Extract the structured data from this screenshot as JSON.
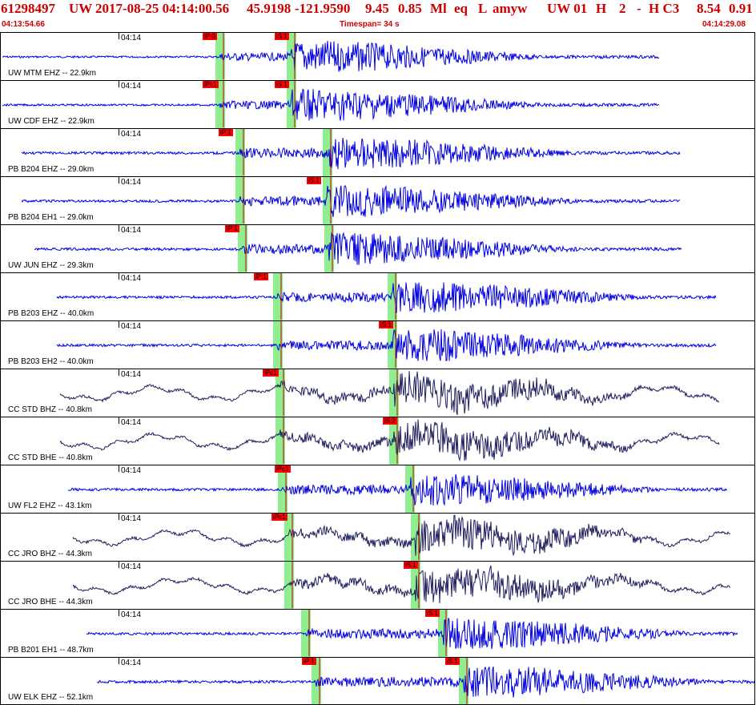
{
  "header": {
    "event_id": "61298497",
    "network": "UW",
    "datetime": "2017-08-25 04:14:00.56",
    "latitude": "45.9198",
    "longitude": "-121.9590",
    "depth": "9.45",
    "magnitude": "0.85",
    "mag_type": "Ml",
    "event_type": "eq",
    "review": "L",
    "analyst": "amyw",
    "origin_source": "UW 01",
    "quality": "H",
    "rank": "2",
    "dash": "-",
    "solution": "H C3",
    "rms_a": "8.54",
    "rms_b": "0.91",
    "start_time": "04:13:54.66",
    "timespan": "Timespan=  34 s",
    "end_time": "04:14:29.08"
  },
  "colors": {
    "header_text": "#cc0000",
    "trace_blue": "#0000e0",
    "trace_navy": "#202060",
    "pick_flag": "#ff0000",
    "pick_window": "#90ee90",
    "pick_line": "#cc0000"
  },
  "traces": [
    {
      "label": "UW MTM EHZ -- 22.9km",
      "time": "04:14",
      "color": "blue",
      "p_pick": "iP:0",
      "s_pick": "iS:1"
    },
    {
      "label": "UW CDF EHZ -- 22.9km",
      "time": "04:14",
      "color": "blue",
      "p_pick": "iPc1",
      "s_pick": "iS:1"
    },
    {
      "label": "PB B204 EHZ -- 29.0km",
      "time": "04:14",
      "color": "blue",
      "p_pick": "iP:1",
      "s_pick": ""
    },
    {
      "label": "PB B204 EH1 -- 29.0km",
      "time": "04:14",
      "color": "blue",
      "p_pick": "",
      "s_pick": "iS:1"
    },
    {
      "label": "UW JUN EHZ -- 29.3km",
      "time": "04:14",
      "color": "blue",
      "p_pick": "iP:1",
      "s_pick": ""
    },
    {
      "label": "PB B203 EHZ -- 40.0km",
      "time": "04:14",
      "color": "blue",
      "p_pick": "iP:1",
      "s_pick": ""
    },
    {
      "label": "PB B203 EH2 -- 40.0km",
      "time": "04:14",
      "color": "blue",
      "p_pick": "",
      "s_pick": "iS:1"
    },
    {
      "label": "CC STD BHZ -- 40.8km",
      "time": "04:14",
      "color": "navy",
      "p_pick": "iPc1",
      "s_pick": ""
    },
    {
      "label": "CC STD BHE -- 40.8km",
      "time": "04:14",
      "color": "navy",
      "p_pick": "",
      "s_pick": "iS:2"
    },
    {
      "label": "UW FL2 EHZ -- 43.1km",
      "time": "04:14",
      "color": "blue",
      "p_pick": "iPc1",
      "s_pick": ""
    },
    {
      "label": "CC JRO BHZ -- 44.3km",
      "time": "04:14",
      "color": "navy",
      "p_pick": "iPc1",
      "s_pick": ""
    },
    {
      "label": "CC JRO BHE -- 44.3km",
      "time": "04:14",
      "color": "navy",
      "p_pick": "",
      "s_pick": "iS:1"
    },
    {
      "label": "PB B201 EH1 -- 48.7km",
      "time": "04:14",
      "color": "blue",
      "p_pick": "",
      "s_pick": "iS:1"
    },
    {
      "label": "UW ELK EHZ -- 52.1km",
      "time": "04:14",
      "color": "blue",
      "p_pick": "iP:1",
      "s_pick": "iS:1"
    }
  ]
}
